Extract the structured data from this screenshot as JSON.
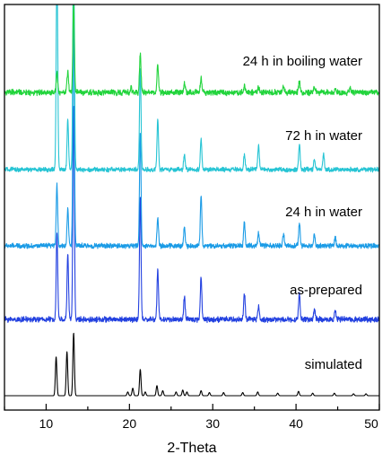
{
  "chart_data": {
    "type": "line",
    "title": "",
    "xlabel": "2-Theta",
    "ylabel": "",
    "xlim": [
      5,
      50
    ],
    "x_ticks": [
      10,
      20,
      30,
      40,
      50
    ],
    "grid": false,
    "legend": "none",
    "series": [
      {
        "name": "simulated",
        "color": "#000000",
        "peaks": [
          [
            11.2,
            0.62
          ],
          [
            12.5,
            0.7
          ],
          [
            13.3,
            1.0
          ],
          [
            19.8,
            0.06
          ],
          [
            20.4,
            0.12
          ],
          [
            21.3,
            0.42
          ],
          [
            21.9,
            0.06
          ],
          [
            23.3,
            0.16
          ],
          [
            24.0,
            0.08
          ],
          [
            25.6,
            0.06
          ],
          [
            26.4,
            0.09
          ],
          [
            26.9,
            0.06
          ],
          [
            28.6,
            0.08
          ],
          [
            29.6,
            0.05
          ],
          [
            31.3,
            0.05
          ],
          [
            33.6,
            0.05
          ],
          [
            35.4,
            0.06
          ],
          [
            37.8,
            0.04
          ],
          [
            40.3,
            0.07
          ],
          [
            42.0,
            0.04
          ],
          [
            44.6,
            0.04
          ],
          [
            46.9,
            0.03
          ],
          [
            48.4,
            0.03
          ]
        ]
      },
      {
        "name": "as-prepared",
        "color": "#2341e0",
        "peaks": [
          [
            11.3,
            0.4
          ],
          [
            12.6,
            0.3
          ],
          [
            13.3,
            1.0
          ],
          [
            21.3,
            0.58
          ],
          [
            23.4,
            0.23
          ],
          [
            26.6,
            0.1
          ],
          [
            28.6,
            0.2
          ],
          [
            33.8,
            0.12
          ],
          [
            35.5,
            0.06
          ],
          [
            40.4,
            0.12
          ],
          [
            42.2,
            0.05
          ],
          [
            44.7,
            0.04
          ]
        ]
      },
      {
        "name": "24 h in water",
        "color": "#1a9be6",
        "peaks": [
          [
            11.3,
            0.26
          ],
          [
            12.6,
            0.16
          ],
          [
            13.3,
            1.0
          ],
          [
            21.3,
            0.48
          ],
          [
            23.4,
            0.12
          ],
          [
            26.6,
            0.08
          ],
          [
            28.6,
            0.22
          ],
          [
            33.8,
            0.1
          ],
          [
            35.5,
            0.06
          ],
          [
            38.5,
            0.05
          ],
          [
            40.4,
            0.1
          ],
          [
            42.2,
            0.05
          ],
          [
            44.7,
            0.04
          ]
        ]
      },
      {
        "name": "72 h in water",
        "color": "#26c4d4",
        "peaks": [
          [
            11.3,
            0.86
          ],
          [
            12.6,
            0.2
          ],
          [
            13.3,
            1.0
          ],
          [
            21.3,
            0.4
          ],
          [
            23.4,
            0.2
          ],
          [
            26.6,
            0.06
          ],
          [
            28.6,
            0.12
          ],
          [
            33.8,
            0.06
          ],
          [
            35.5,
            0.1
          ],
          [
            40.4,
            0.1
          ],
          [
            42.2,
            0.04
          ],
          [
            43.3,
            0.06
          ]
        ]
      },
      {
        "name": "24 h in boiling water",
        "color": "#22d43c",
        "peaks": [
          [
            11.3,
            0.23
          ],
          [
            12.6,
            0.23
          ],
          [
            13.3,
            1.0
          ],
          [
            20.2,
            0.05
          ],
          [
            21.3,
            0.44
          ],
          [
            23.4,
            0.31
          ],
          [
            26.6,
            0.1
          ],
          [
            28.6,
            0.16
          ],
          [
            33.8,
            0.08
          ],
          [
            35.5,
            0.06
          ],
          [
            38.5,
            0.07
          ],
          [
            40.4,
            0.12
          ],
          [
            42.2,
            0.06
          ],
          [
            44.7,
            0.05
          ],
          [
            46.5,
            0.04
          ]
        ]
      }
    ]
  }
}
